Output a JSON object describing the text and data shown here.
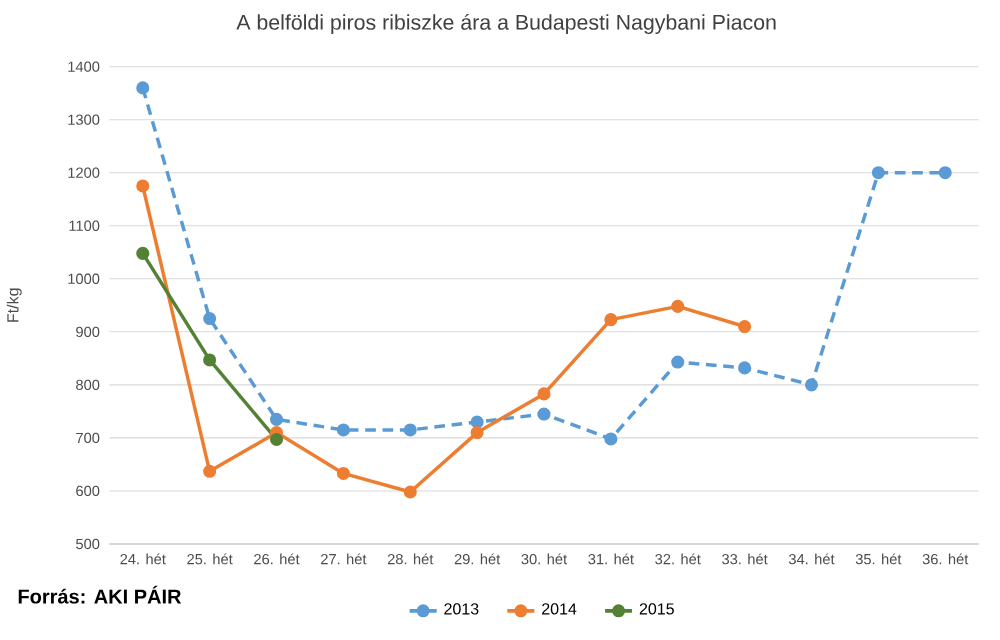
{
  "chart_data": {
    "type": "line",
    "title": "A belföldi piros ribiszke ára a Budapesti Nagybani Piacon",
    "ylabel": "Ft/kg",
    "categories": [
      "24. hét",
      "25. hét",
      "26. hét",
      "27. hét",
      "28. hét",
      "29. hét",
      "30. hét",
      "31. hét",
      "32. hét",
      "33. hét",
      "34. hét",
      "35. hét",
      "36. hét"
    ],
    "series": [
      {
        "name": "2013",
        "color": "#5b9bd5",
        "line_style": "dashed",
        "values": [
          1360,
          925,
          735,
          715,
          715,
          730,
          745,
          698,
          843,
          832,
          800,
          1200,
          1200
        ]
      },
      {
        "name": "2014",
        "color": "#ed7d31",
        "line_style": "solid",
        "values": [
          1175,
          637,
          710,
          633,
          598,
          710,
          783,
          923,
          948,
          910,
          null,
          null,
          null
        ]
      },
      {
        "name": "2015",
        "color": "#548235",
        "line_style": "solid",
        "values": [
          1048,
          847,
          697,
          null,
          null,
          null,
          null,
          null,
          null,
          null,
          null,
          null,
          null
        ]
      }
    ],
    "ylim": [
      500,
      1400
    ],
    "yticks": [
      500,
      600,
      700,
      800,
      900,
      1000,
      1100,
      1200,
      1300,
      1400
    ],
    "grid": "y",
    "legend": "bottom",
    "marker": "circle",
    "annotations": [
      "Forrás: AKI PÁIR"
    ]
  }
}
